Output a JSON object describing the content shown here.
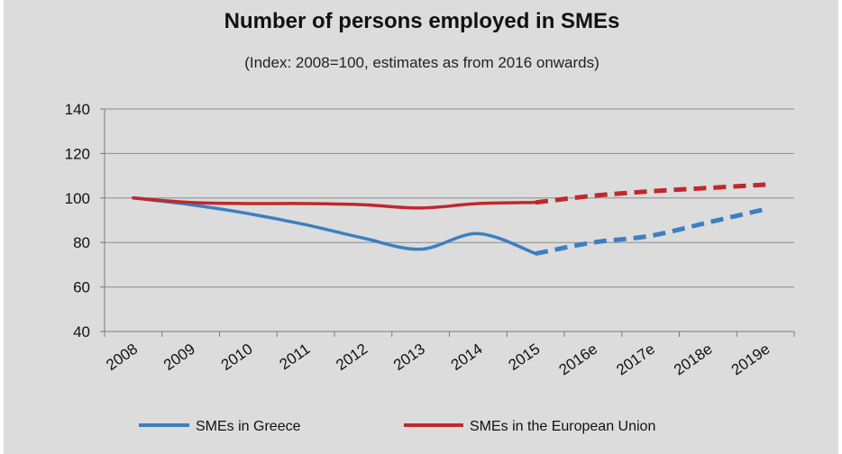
{
  "chart_data": {
    "type": "line",
    "title": "Number of persons employed in SMEs",
    "subtitle": "(Index: 2008=100, estimates  as from 2016 onwards)",
    "categories": [
      "2008",
      "2009",
      "2010",
      "2011",
      "2012",
      "2013",
      "2014",
      "2015",
      "2016e",
      "2017e",
      "2018e",
      "2019e"
    ],
    "ylim": [
      40,
      140
    ],
    "yticks": [
      40,
      60,
      80,
      100,
      120,
      140
    ],
    "grid": true,
    "legend_position": "bottom",
    "series": [
      {
        "name": "SMEs in Greece",
        "color": "#3d7fc1",
        "values": [
          100,
          97,
          93,
          88,
          82,
          77,
          84,
          75,
          80,
          83,
          89,
          95
        ]
      },
      {
        "name": "SMEs in the European Union",
        "color": "#c0282d",
        "values": [
          100,
          98,
          97.5,
          97.5,
          97,
          95.5,
          97.5,
          98,
          101,
          103,
          104.5,
          106
        ]
      }
    ],
    "estimate_start_index": 7
  }
}
